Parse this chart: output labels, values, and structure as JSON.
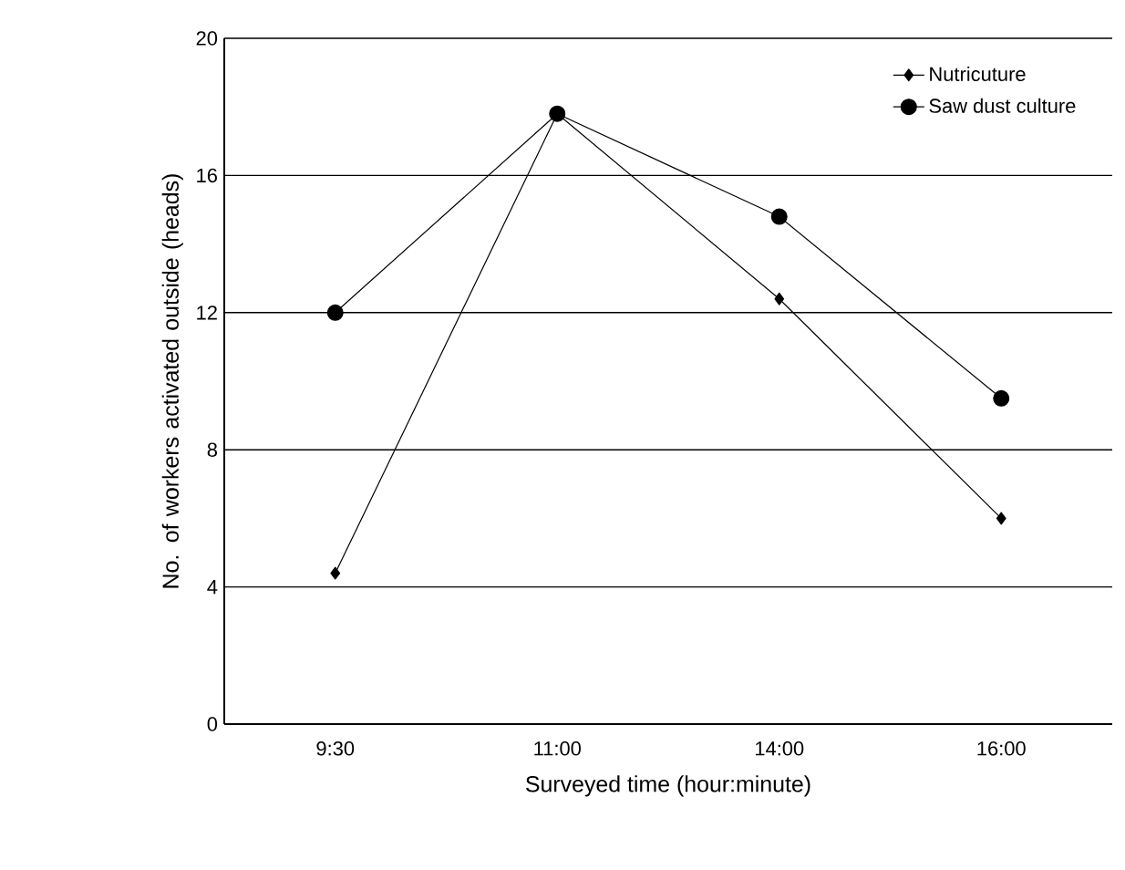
{
  "chart_data": {
    "type": "line",
    "xlabel": "Surveyed time (hour:minute)",
    "ylabel": "No. of workers activated outside (heads)",
    "categories": [
      "9:30",
      "11:00",
      "14:00",
      "16:00"
    ],
    "series": [
      {
        "name": "Nutricuture",
        "color": "#000000",
        "marker": "diamond",
        "values": [
          4.4,
          17.8,
          12.4,
          6.0
        ]
      },
      {
        "name": "Saw dust culture",
        "color": "#000000",
        "marker": "circle",
        "values": [
          12.0,
          17.8,
          14.8,
          9.5
        ]
      }
    ],
    "ylim": [
      0,
      20
    ],
    "yticks": [
      0,
      4,
      8,
      12,
      16,
      20
    ],
    "grid": "y",
    "legend": "top right",
    "line_style": "solid"
  }
}
